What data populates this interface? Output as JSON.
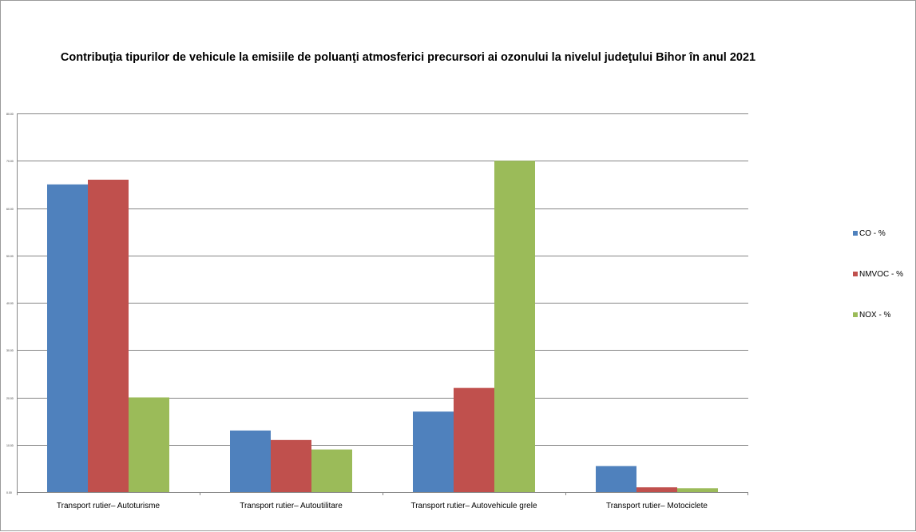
{
  "chart_data": {
    "type": "bar",
    "title": "Contribuţia tipurilor de vehicule la emisiile de poluanţi atmosferici precursori ai ozonului la nivelul judeţului Bihor în anul 2021",
    "categories": [
      "Transport rutier– Autoturisme",
      "Transport rutier– Autoutilitare",
      "Transport rutier– Autovehicule grele",
      "Transport rutier– Motociclete"
    ],
    "series": [
      {
        "name": "CO - %",
        "color": "#4F81BD",
        "values": [
          65.0,
          13.0,
          17.0,
          5.5
        ]
      },
      {
        "name": "NMVOC - %",
        "color": "#C0504D",
        "values": [
          66.0,
          11.0,
          22.0,
          1.0
        ]
      },
      {
        "name": "NOX - %",
        "color": "#9BBB59",
        "values": [
          20.0,
          9.0,
          70.0,
          0.8
        ]
      }
    ],
    "yticks": [
      "0.00",
      "10.00",
      "20.00",
      "30.00",
      "40.00",
      "50.00",
      "60.00",
      "70.00",
      "80.00"
    ],
    "ylim": [
      0,
      80
    ],
    "grid": true,
    "legend_position": "right"
  }
}
